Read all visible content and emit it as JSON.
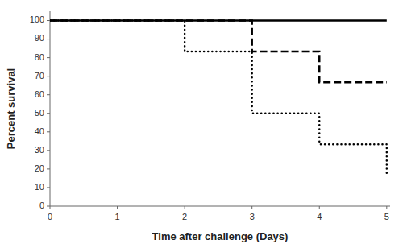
{
  "chart_data": {
    "type": "line",
    "xlabel": "Time after challenge (Days)",
    "ylabel": "Percent survival",
    "series": [
      {
        "x": [
          0,
          5
        ],
        "values": [
          100,
          100
        ],
        "color": "#000000",
        "line_style": "solid"
      },
      {
        "x": [
          0,
          3,
          3,
          4,
          4,
          5
        ],
        "values": [
          100,
          100,
          83.33,
          83.33,
          66.67,
          66.67
        ],
        "color": "#000000",
        "line_style": "dashed"
      },
      {
        "x": [
          0,
          2,
          2,
          3,
          3,
          4,
          4,
          5,
          5
        ],
        "values": [
          100,
          100,
          83.33,
          83.33,
          50.0,
          50.0,
          33.33,
          33.33,
          16.67
        ],
        "color": "#000000",
        "line_style": "dotted"
      }
    ],
    "xlim": [
      0,
      5.05
    ],
    "ylim": [
      0,
      105
    ],
    "xticks": [
      0,
      1,
      2,
      3,
      4,
      5
    ],
    "yticks": [
      0,
      10,
      20,
      30,
      40,
      50,
      60,
      70,
      80,
      90,
      100
    ],
    "grid": false
  }
}
